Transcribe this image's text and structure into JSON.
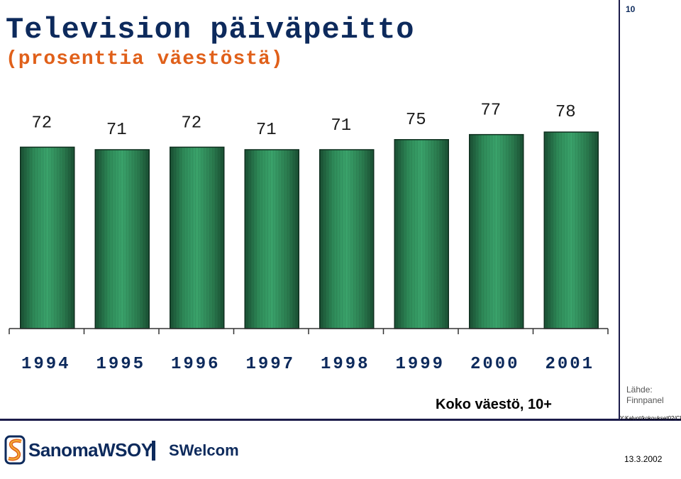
{
  "header": {
    "title": "Television päiväpeitto",
    "subtitle": "(prosenttia väestöstä)",
    "page_number": "10"
  },
  "chart_data": {
    "type": "bar",
    "categories": [
      "1994",
      "1995",
      "1996",
      "1997",
      "1998",
      "1999",
      "2000",
      "2001"
    ],
    "values": [
      72,
      71,
      72,
      71,
      71,
      75,
      77,
      78
    ],
    "data_labels": [
      "72",
      "71",
      "72",
      "71",
      "71",
      "75",
      "77",
      "78"
    ],
    "title": "Television päiväpeitto",
    "subtitle": "(prosenttia väestöstä)",
    "xlabel": "",
    "ylabel": "",
    "grid": false,
    "legend": "none",
    "colors": {
      "bar_light": "#3aa36b",
      "bar_dark": "#1a4f33",
      "bar_outline": "#0f2f1f",
      "axis": "#333333"
    }
  },
  "footer": {
    "caption": "Koko väestö, 10+",
    "source_label": "Lähde:",
    "source_value": "Finnpanel",
    "file_path": "Y:Kalvot/kokoukset02/CMD",
    "company": "SanomaWSOY",
    "department": "SWelcom",
    "date": "13.3.2002"
  }
}
